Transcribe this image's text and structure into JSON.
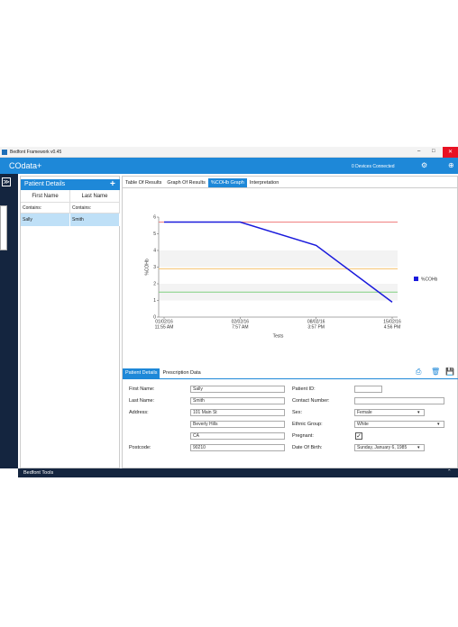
{
  "window_title": "Bedfont Framework v0.45",
  "app": {
    "title": "COdata+",
    "status": "0 Devices Connected"
  },
  "patient_panel": {
    "title": "Patient Details",
    "columns": [
      "First Name",
      "Last Name"
    ],
    "filters": [
      "Contains:",
      "Contains:"
    ],
    "rows": [
      [
        "Sally",
        "Smith"
      ]
    ]
  },
  "tabs": [
    "Table Of Results",
    "Graph Of Results",
    "%COHb Graph",
    "Interpretation"
  ],
  "chart_data": {
    "type": "line",
    "y_label": "%COHb",
    "x_label": "Tests",
    "categories": [
      "01/02/16",
      "02/02/16",
      "08/02/16",
      "15/02/16"
    ],
    "category_times": [
      "11:55 AM",
      "7:57 AM",
      "3:57 PM",
      "4:56 PM"
    ],
    "series": [
      {
        "name": "%COHb",
        "color": "#1a1adc",
        "values": [
          5.7,
          5.7,
          4.3,
          0.9
        ]
      }
    ],
    "reference_lines": [
      {
        "value": 5.7,
        "color": "#f08080"
      },
      {
        "value": 2.9,
        "color": "#f5c16c"
      },
      {
        "value": 1.5,
        "color": "#7fcf7f"
      }
    ],
    "ylim": [
      0,
      6
    ],
    "yticks": [
      0,
      1,
      2,
      3,
      4,
      5,
      6
    ]
  },
  "form_tabs": [
    "Patient Details",
    "Prescription Data"
  ],
  "form": {
    "left": [
      {
        "label": "First Name:",
        "value": "Sally"
      },
      {
        "label": "Last Name:",
        "value": "Smith"
      },
      {
        "label": "Address:",
        "value": "101 Main St"
      },
      {
        "value": "Beverly Hills"
      },
      {
        "value": "CA"
      },
      {
        "label": "Postcode:",
        "value": "90210"
      }
    ],
    "right": [
      {
        "label": "Patient ID:"
      },
      {
        "label": "Contact Number:"
      },
      {
        "label": "Sex:",
        "value": "Female",
        "dropdown": true
      },
      {
        "label": "Ethnic Group:",
        "value": "White",
        "dropdown": true
      },
      {
        "label": "Pregnant:",
        "checked": true
      },
      {
        "label": "Date Of Birth:",
        "value": "Sunday, January 6, 1985",
        "dropdown": true
      }
    ]
  },
  "footer": "Bedfont Tools"
}
